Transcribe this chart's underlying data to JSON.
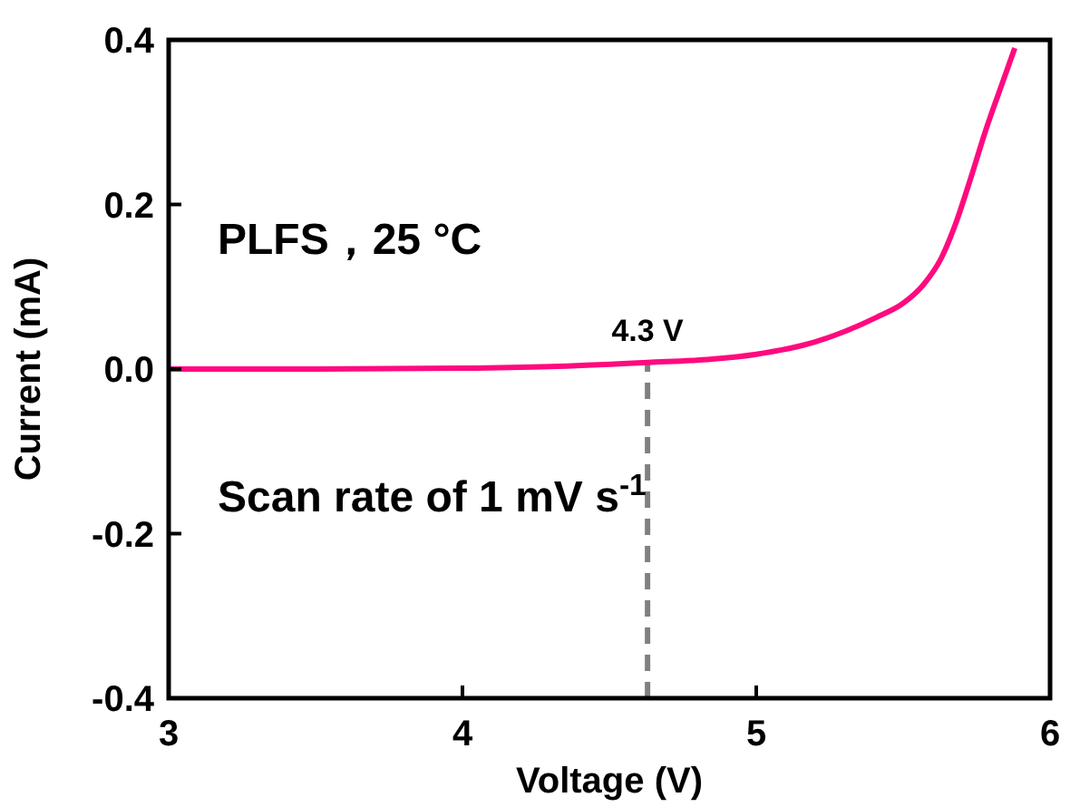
{
  "chart_data": {
    "type": "line",
    "xlabel": "Voltage (V)",
    "ylabel": "Current (mA)",
    "xlim": [
      3,
      6
    ],
    "xticks": [
      3,
      4,
      5,
      6
    ],
    "ylim": [
      -0.4,
      0.4
    ],
    "yticks": [
      {
        "value": -0.4,
        "label": "-0.4"
      },
      {
        "value": -0.2,
        "label": "-0.2"
      },
      {
        "value": 0,
        "label": "0.0"
      },
      {
        "value": 0.2,
        "label": "0.2"
      },
      {
        "value": 0.4,
        "label": "0.4"
      }
    ],
    "series": [
      {
        "color": "#ff0a7f",
        "x": [
          3,
          3.5,
          4,
          4.3,
          4.63,
          4.85,
          5,
          5.2,
          5.41,
          5.5,
          5.57,
          5.63,
          5.68,
          5.73,
          5.78,
          5.83,
          5.88
        ],
        "values": [
          0,
          0,
          0.001,
          0.003,
          0.008,
          0.012,
          0.018,
          0.033,
          0.063,
          0.08,
          0.103,
          0.135,
          0.178,
          0.232,
          0.289,
          0.34,
          0.39
        ]
      }
    ],
    "ref_lines": [
      {
        "axis": "x",
        "value": 4.63,
        "label": "4.3 V",
        "color": "#808080",
        "line_style": "dashed"
      }
    ],
    "annotations": [
      "PLFS，25 °C",
      "Scan rate of 1 mV s$^{-1}$"
    ],
    "grid": false,
    "marker": "none",
    "line_style": "solid"
  }
}
